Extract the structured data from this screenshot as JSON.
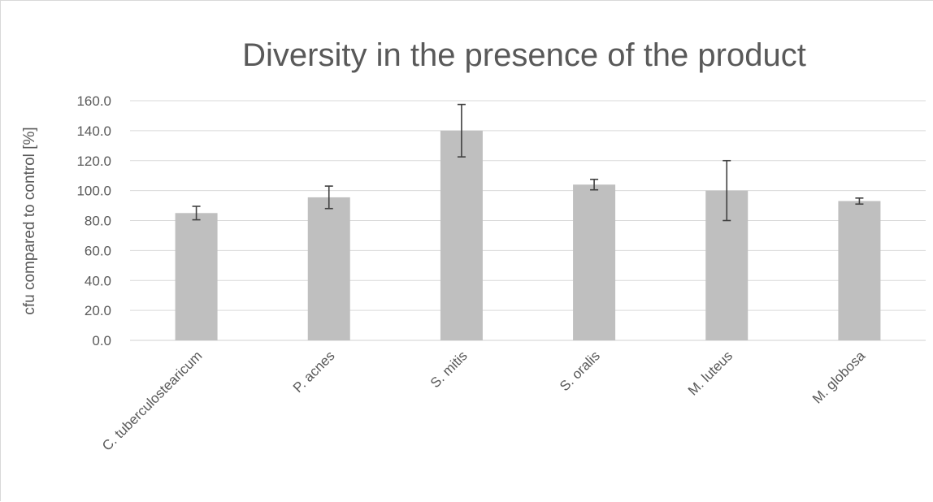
{
  "chart_data": {
    "type": "bar",
    "title": "Diversity in the presence of the product",
    "xlabel": "",
    "ylabel": "cfu compared to control [%]",
    "ylim": [
      0,
      160
    ],
    "ytick_step": 20,
    "ytick_labels": [
      "0.0",
      "20.0",
      "40.0",
      "60.0",
      "80.0",
      "100.0",
      "120.0",
      "140.0",
      "160.0"
    ],
    "grid": true,
    "legend": "none",
    "bar_color": "#bfbfbf",
    "categories": [
      "C. tuberculostearicum",
      "P. acnes",
      "S. mitis",
      "S. oralis",
      "M. luteus",
      "M. globosa"
    ],
    "values": [
      85,
      95.5,
      140,
      104,
      100,
      93
    ],
    "error": [
      4.5,
      7.5,
      17.5,
      3.5,
      20,
      2
    ]
  }
}
